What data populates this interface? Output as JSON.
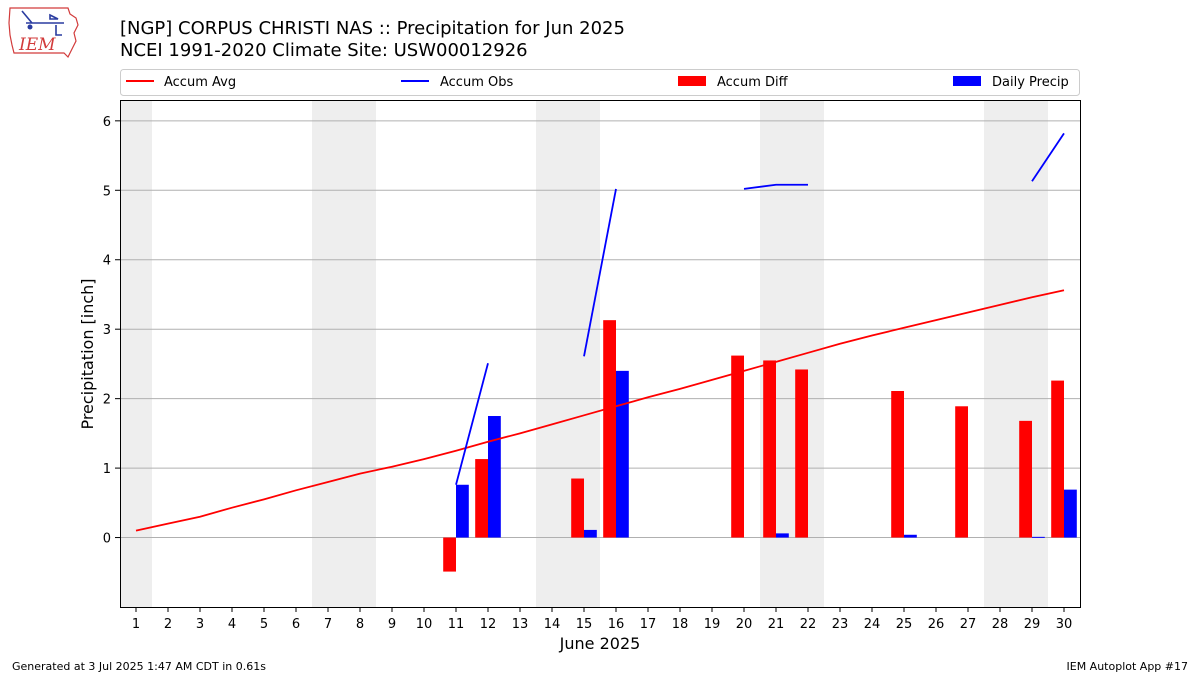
{
  "header": {
    "title_line1": "[NGP] CORPUS CHRISTI NAS :: Precipitation for Jun 2025",
    "title_line2": "NCEI 1991-2020 Climate Site: USW00012926",
    "logo_text": "IEM"
  },
  "footer": {
    "generated": "Generated at 3 Jul 2025 1:47 AM CDT in 0.61s",
    "app": "IEM Autoplot App #17"
  },
  "colors": {
    "avg": "#ff0000",
    "obs": "#0000ff",
    "diff": "#ff0000",
    "daily": "#0000ff",
    "weekend_band": "#eeeeee",
    "grid": "#b0b0b0"
  },
  "chart_data": {
    "type": "bar",
    "xlabel": "June 2025",
    "ylabel": "Precipitation [inch]",
    "xlim": [
      0.5,
      30.5
    ],
    "ylim": [
      -1.0,
      6.3
    ],
    "yticks": [
      0,
      1,
      2,
      3,
      4,
      5,
      6
    ],
    "xticks": [
      1,
      2,
      3,
      4,
      5,
      6,
      7,
      8,
      9,
      10,
      11,
      12,
      13,
      14,
      15,
      16,
      17,
      18,
      19,
      20,
      21,
      22,
      23,
      24,
      25,
      26,
      27,
      28,
      29,
      30
    ],
    "grid": "horizontal",
    "legend_placement": "top, above plot",
    "weekend_days": [
      1,
      7,
      8,
      14,
      15,
      21,
      22,
      28,
      29
    ],
    "series": [
      {
        "name": "Accum Avg",
        "kind": "line",
        "x": [
          1,
          2,
          3,
          4,
          5,
          6,
          7,
          8,
          9,
          10,
          11,
          12,
          13,
          14,
          15,
          16,
          17,
          18,
          19,
          20,
          21,
          22,
          23,
          24,
          25,
          26,
          27,
          28,
          29,
          30
        ],
        "values": [
          0.1,
          0.2,
          0.3,
          0.43,
          0.55,
          0.68,
          0.8,
          0.92,
          1.02,
          1.13,
          1.25,
          1.38,
          1.5,
          1.63,
          1.76,
          1.89,
          2.02,
          2.14,
          2.27,
          2.4,
          2.53,
          2.66,
          2.79,
          2.91,
          3.02,
          3.13,
          3.24,
          3.35,
          3.46,
          3.56
        ]
      },
      {
        "name": "Accum Obs",
        "kind": "line",
        "segments": [
          {
            "x": [
              11,
              12
            ],
            "values": [
              0.76,
              2.51
            ]
          },
          {
            "x": [
              15,
              16
            ],
            "values": [
              2.61,
              5.02
            ]
          },
          {
            "x": [
              20,
              21,
              22
            ],
            "values": [
              5.02,
              5.08,
              5.08
            ]
          },
          {
            "x": [
              29,
              30
            ],
            "values": [
              5.13,
              5.82
            ]
          }
        ]
      },
      {
        "name": "Accum Diff",
        "kind": "bar",
        "x": [
          11,
          12,
          15,
          16,
          20,
          21,
          22,
          25,
          27,
          29,
          30
        ],
        "values": [
          -0.49,
          1.13,
          0.85,
          3.13,
          2.62,
          2.55,
          2.42,
          2.11,
          1.89,
          1.68,
          2.26
        ]
      },
      {
        "name": "Daily Precip",
        "kind": "bar",
        "x": [
          11,
          12,
          15,
          16,
          21,
          25,
          29,
          30
        ],
        "values": [
          0.76,
          1.75,
          0.11,
          2.4,
          0.06,
          0.04,
          0.01,
          0.69
        ]
      }
    ]
  }
}
